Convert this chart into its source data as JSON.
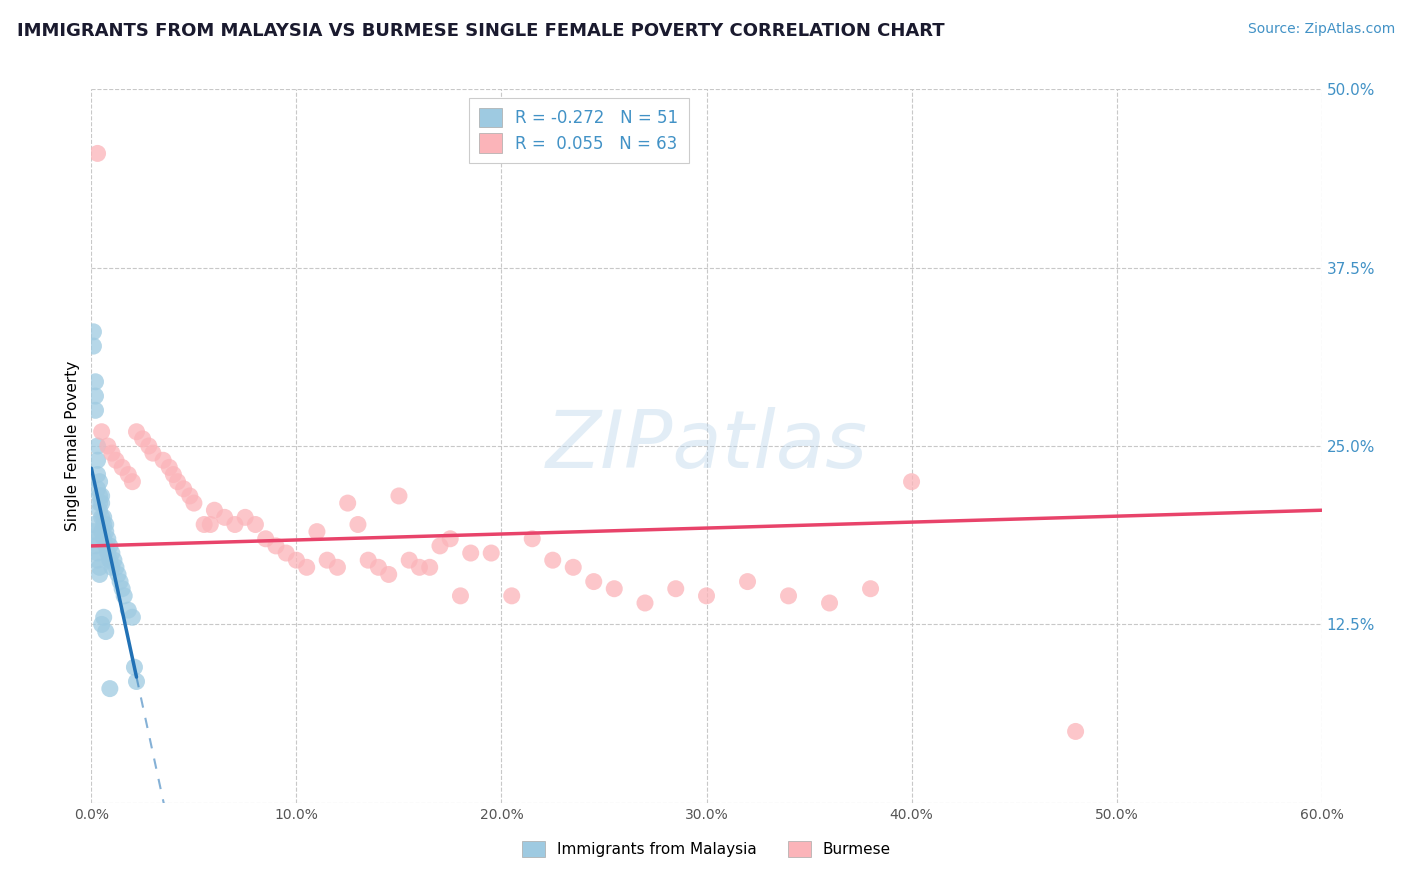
{
  "title": "IMMIGRANTS FROM MALAYSIA VS BURMESE SINGLE FEMALE POVERTY CORRELATION CHART",
  "source": "Source: ZipAtlas.com",
  "ylabel": "Single Female Poverty",
  "legend_label1": "Immigrants from Malaysia",
  "legend_label2": "Burmese",
  "R1": -0.272,
  "N1": 51,
  "R2": 0.055,
  "N2": 63,
  "xlim": [
    0.0,
    0.6
  ],
  "ylim": [
    0.0,
    0.5
  ],
  "xticks": [
    0.0,
    0.1,
    0.2,
    0.3,
    0.4,
    0.5,
    0.6
  ],
  "yticks_right": [
    0.0,
    0.125,
    0.25,
    0.375,
    0.5
  ],
  "ytick_labels_right": [
    "",
    "12.5%",
    "25.0%",
    "37.5%",
    "50.0%"
  ],
  "xtick_labels": [
    "0.0%",
    "10.0%",
    "20.0%",
    "30.0%",
    "40.0%",
    "50.0%",
    "60.0%"
  ],
  "color_blue": "#9ecae1",
  "color_pink": "#fbb4b9",
  "color_trend_blue": "#2171b5",
  "color_trend_pink": "#e8436a",
  "color_axis_label": "#4292c6",
  "background_color": "#ffffff",
  "grid_color": "#c8c8c8",
  "watermark": "ZIPatlas",
  "blue_x": [
    0.001,
    0.001,
    0.002,
    0.002,
    0.002,
    0.003,
    0.003,
    0.003,
    0.003,
    0.004,
    0.004,
    0.004,
    0.004,
    0.005,
    0.005,
    0.005,
    0.005,
    0.006,
    0.006,
    0.006,
    0.007,
    0.007,
    0.007,
    0.008,
    0.008,
    0.009,
    0.009,
    0.01,
    0.01,
    0.011,
    0.012,
    0.013,
    0.014,
    0.015,
    0.016,
    0.018,
    0.02,
    0.021,
    0.022,
    0.001,
    0.001,
    0.002,
    0.002,
    0.003,
    0.003,
    0.004,
    0.004,
    0.005,
    0.006,
    0.007,
    0.009
  ],
  "blue_y": [
    0.33,
    0.32,
    0.295,
    0.285,
    0.275,
    0.25,
    0.24,
    0.23,
    0.22,
    0.225,
    0.215,
    0.21,
    0.205,
    0.215,
    0.21,
    0.2,
    0.19,
    0.2,
    0.195,
    0.185,
    0.195,
    0.19,
    0.18,
    0.185,
    0.175,
    0.18,
    0.17,
    0.175,
    0.165,
    0.17,
    0.165,
    0.16,
    0.155,
    0.15,
    0.145,
    0.135,
    0.13,
    0.095,
    0.085,
    0.195,
    0.19,
    0.185,
    0.18,
    0.175,
    0.17,
    0.165,
    0.16,
    0.125,
    0.13,
    0.12,
    0.08
  ],
  "pink_x": [
    0.003,
    0.005,
    0.008,
    0.01,
    0.012,
    0.015,
    0.018,
    0.02,
    0.022,
    0.025,
    0.028,
    0.03,
    0.035,
    0.038,
    0.04,
    0.042,
    0.045,
    0.048,
    0.05,
    0.055,
    0.058,
    0.06,
    0.065,
    0.07,
    0.075,
    0.08,
    0.085,
    0.09,
    0.095,
    0.1,
    0.105,
    0.11,
    0.115,
    0.12,
    0.125,
    0.13,
    0.135,
    0.14,
    0.145,
    0.15,
    0.155,
    0.16,
    0.165,
    0.17,
    0.175,
    0.18,
    0.185,
    0.195,
    0.205,
    0.215,
    0.225,
    0.235,
    0.245,
    0.255,
    0.27,
    0.285,
    0.3,
    0.32,
    0.34,
    0.36,
    0.38,
    0.4,
    0.48
  ],
  "pink_y": [
    0.455,
    0.26,
    0.25,
    0.245,
    0.24,
    0.235,
    0.23,
    0.225,
    0.26,
    0.255,
    0.25,
    0.245,
    0.24,
    0.235,
    0.23,
    0.225,
    0.22,
    0.215,
    0.21,
    0.195,
    0.195,
    0.205,
    0.2,
    0.195,
    0.2,
    0.195,
    0.185,
    0.18,
    0.175,
    0.17,
    0.165,
    0.19,
    0.17,
    0.165,
    0.21,
    0.195,
    0.17,
    0.165,
    0.16,
    0.215,
    0.17,
    0.165,
    0.165,
    0.18,
    0.185,
    0.145,
    0.175,
    0.175,
    0.145,
    0.185,
    0.17,
    0.165,
    0.155,
    0.15,
    0.14,
    0.15,
    0.145,
    0.155,
    0.145,
    0.14,
    0.15,
    0.225,
    0.05
  ],
  "trend_blue_x0": 0.0,
  "trend_blue_x1": 0.022,
  "trend_blue_dash_x1": 0.155,
  "trend_pink_x0": 0.0,
  "trend_pink_x1": 0.6,
  "trend_pink_y0": 0.18,
  "trend_pink_y1": 0.205
}
